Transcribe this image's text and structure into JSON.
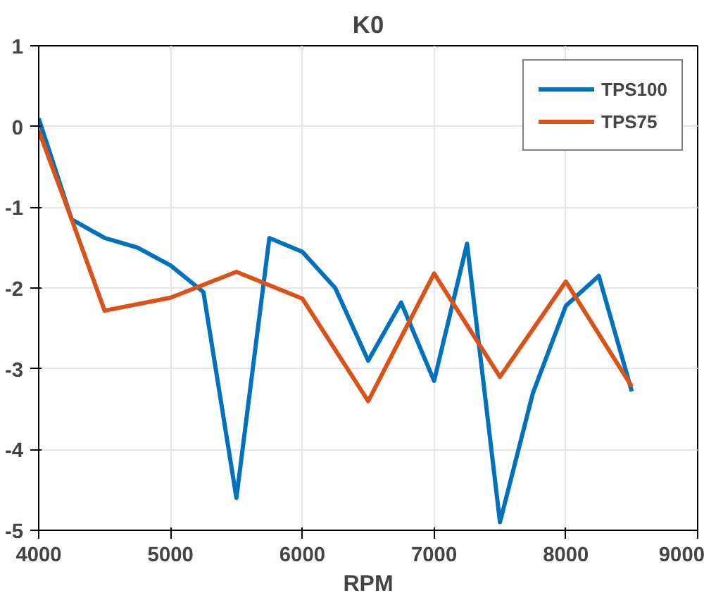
{
  "chart_data": {
    "type": "line",
    "title": "K0",
    "xlabel": "RPM",
    "series": [
      {
        "name": "TPS100",
        "color": "#0072bd",
        "x": [
          4000,
          4250,
          4500,
          4750,
          5000,
          5250,
          5500,
          5750,
          6000,
          6250,
          6500,
          6750,
          7000,
          7250,
          7500,
          7750,
          8000,
          8250,
          8500
        ],
        "values": [
          0.1,
          -1.15,
          -1.38,
          -1.5,
          -1.72,
          -2.05,
          -4.6,
          -1.38,
          -1.55,
          -2.0,
          -2.9,
          -2.18,
          -3.15,
          -1.45,
          -4.9,
          -3.3,
          -2.22,
          -1.85,
          -3.28
        ]
      },
      {
        "name": "TPS75",
        "color": "#d95319",
        "x": [
          4000,
          4250,
          4500,
          5000,
          5500,
          6000,
          6500,
          7000,
          7500,
          8000,
          8500
        ],
        "values": [
          -0.05,
          -1.15,
          -2.28,
          -2.12,
          -1.8,
          -2.13,
          -3.4,
          -1.82,
          -3.1,
          -1.92,
          -3.22
        ]
      }
    ],
    "xlim": [
      4000,
      9000
    ],
    "xticks": [
      4000,
      5000,
      6000,
      7000,
      8000,
      9000
    ],
    "ylim": [
      -5,
      1
    ],
    "yticks": [
      -5,
      -4,
      -3,
      -2,
      -1,
      0,
      1
    ],
    "grid": true,
    "legend": "top right",
    "line_style": "solid",
    "marker": "none"
  }
}
